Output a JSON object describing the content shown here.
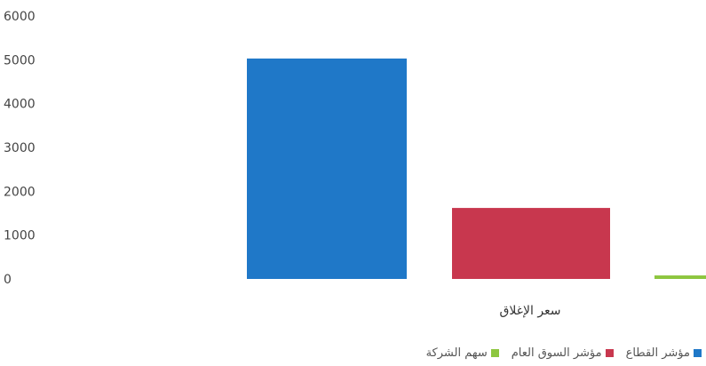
{
  "chart_data": {
    "type": "bar",
    "categories": [
      "سعر الإغلاق"
    ],
    "series": [
      {
        "name": "مؤشر القطاع",
        "values": [
          5030
        ],
        "color": "#1f78c8"
      },
      {
        "name": "مؤشر السوق العام",
        "values": [
          1620
        ],
        "color": "#c8374e"
      },
      {
        "name": "سهم الشركة",
        "values": [
          80
        ],
        "color": "#8dc63f"
      }
    ],
    "title": "",
    "xlabel": "",
    "ylabel": "",
    "ylim": [
      0,
      6000
    ],
    "yticks": [
      "0",
      "1000",
      "2000",
      "3000",
      "4000",
      "5000",
      "6000"
    ],
    "grid": false,
    "legend_position": "bottom"
  }
}
